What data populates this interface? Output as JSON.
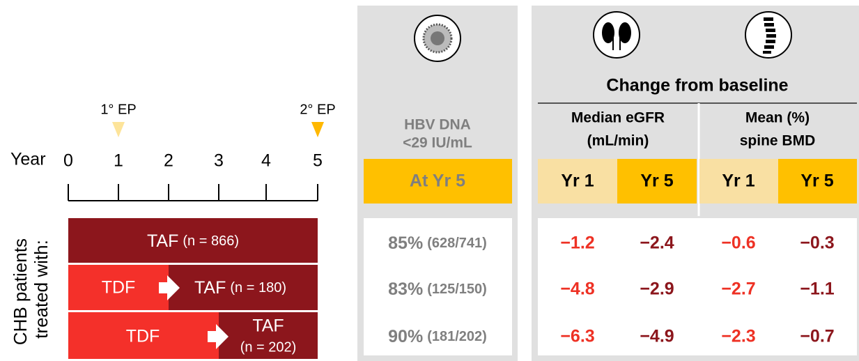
{
  "timeline": {
    "axis_label": "Year",
    "ticks": [
      "0",
      "1",
      "2",
      "3",
      "4",
      "5"
    ],
    "markers": [
      "1° EP",
      "2° EP"
    ]
  },
  "group_label": [
    "CHB patients",
    "treated with:"
  ],
  "arms": [
    {
      "segments": [
        "TAF"
      ],
      "n": "(n = 866)"
    },
    {
      "segments": [
        "TDF",
        "TAF"
      ],
      "n": "(n = 180)"
    },
    {
      "segments": [
        "TDF",
        "TAF"
      ],
      "n": "(n = 202)"
    }
  ],
  "hbv": {
    "header": [
      "HBV DNA",
      "<29 IU/mL"
    ],
    "timepoint": "At Yr 5",
    "rows": [
      {
        "pct": "85%",
        "frac": "(628/741)"
      },
      {
        "pct": "83%",
        "frac": "(125/150)"
      },
      {
        "pct": "90%",
        "frac": "(181/202)"
      }
    ]
  },
  "change": {
    "title": "Change from baseline",
    "groups": [
      {
        "header": [
          "Median eGFR",
          "(mL/min)"
        ],
        "columns": [
          "Yr 1",
          "Yr 5"
        ]
      },
      {
        "header": [
          "Mean (%)",
          "spine BMD"
        ],
        "columns": [
          "Yr 1",
          "Yr 5"
        ]
      }
    ],
    "rows": [
      [
        "−1.2",
        "−2.4",
        "−0.6",
        "−0.3"
      ],
      [
        "−4.8",
        "−2.9",
        "−2.7",
        "−1.1"
      ],
      [
        "−6.3",
        "−4.9",
        "−2.3",
        "−0.7"
      ]
    ]
  }
}
